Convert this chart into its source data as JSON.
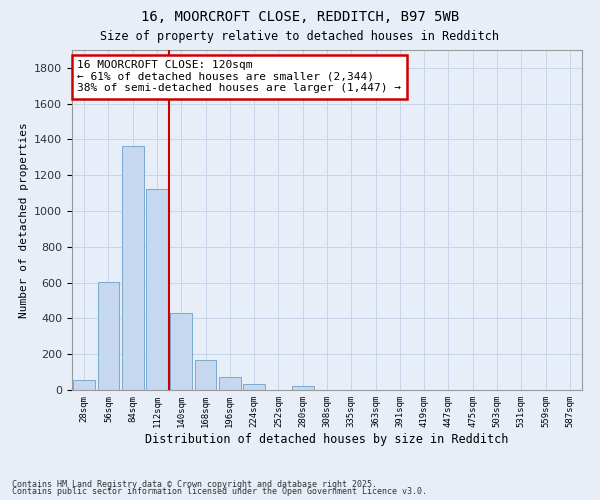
{
  "title": "16, MOORCROFT CLOSE, REDDITCH, B97 5WB",
  "subtitle": "Size of property relative to detached houses in Redditch",
  "xlabel": "Distribution of detached houses by size in Redditch",
  "ylabel": "Number of detached properties",
  "footnote1": "Contains HM Land Registry data © Crown copyright and database right 2025.",
  "footnote2": "Contains public sector information licensed under the Open Government Licence v3.0.",
  "bins": [
    "28sqm",
    "56sqm",
    "84sqm",
    "112sqm",
    "140sqm",
    "168sqm",
    "196sqm",
    "224sqm",
    "252sqm",
    "280sqm",
    "308sqm",
    "335sqm",
    "363sqm",
    "391sqm",
    "419sqm",
    "447sqm",
    "475sqm",
    "503sqm",
    "531sqm",
    "559sqm",
    "587sqm"
  ],
  "values": [
    55,
    605,
    1365,
    1125,
    430,
    170,
    70,
    35,
    0,
    20,
    0,
    0,
    0,
    0,
    0,
    0,
    0,
    0,
    0,
    0,
    0
  ],
  "bar_color": "#c5d8f0",
  "bar_edge_color": "#7aaad0",
  "grid_color": "#c8d4e8",
  "background_color": "#e8eef8",
  "red_line_x": 3.5,
  "red_line_color": "#cc0000",
  "annotation_text": "16 MOORCROFT CLOSE: 120sqm\n← 61% of detached houses are smaller (2,344)\n38% of semi-detached houses are larger (1,447) →",
  "annotation_box_color": "#ffffff",
  "annotation_box_edge": "#cc0000",
  "ylim": [
    0,
    1900
  ],
  "yticks": [
    0,
    200,
    400,
    600,
    800,
    1000,
    1200,
    1400,
    1600,
    1800
  ]
}
